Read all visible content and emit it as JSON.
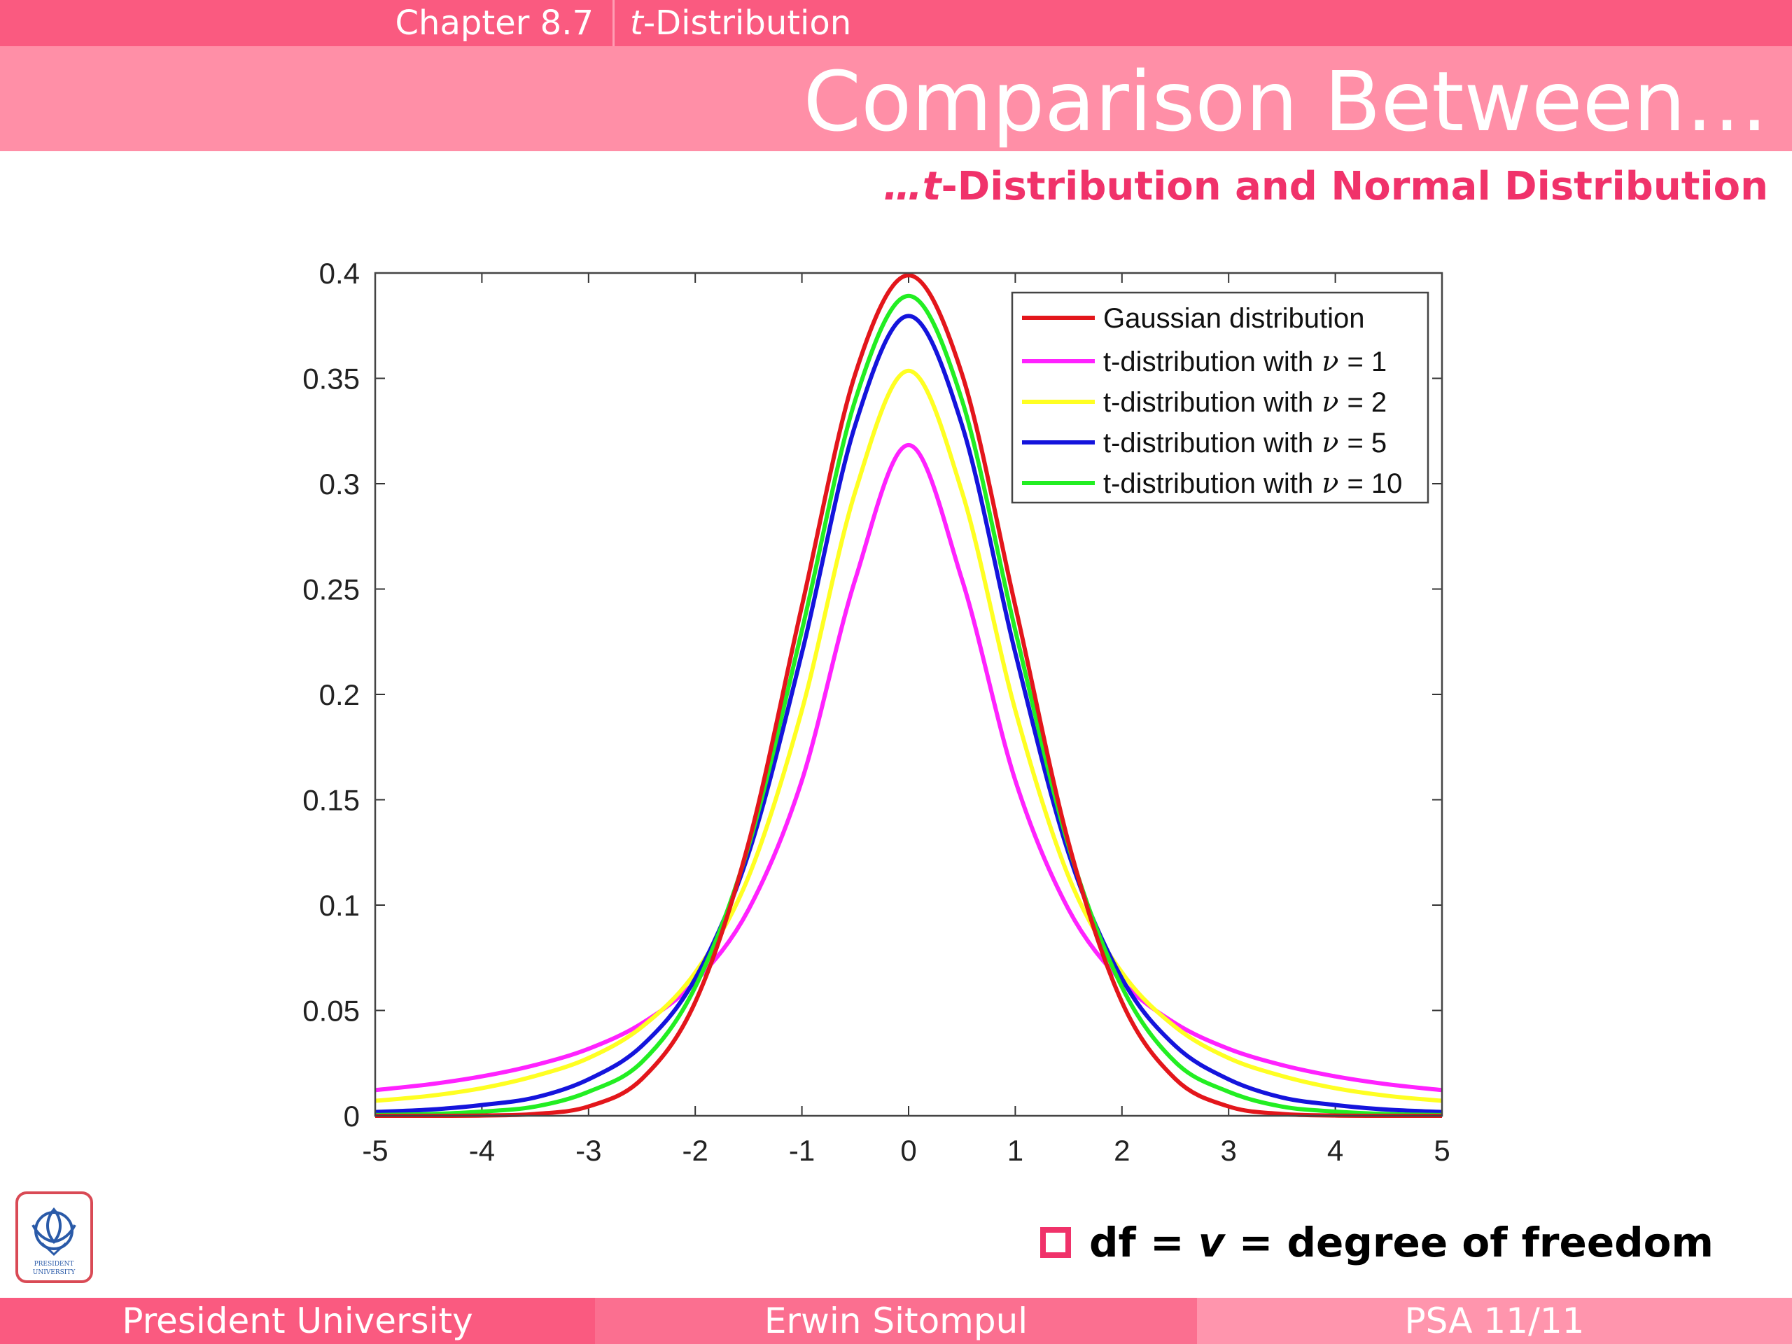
{
  "header": {
    "chapter": "Chapter 8.7",
    "section_italic": "t",
    "section_rest": "-Distribution",
    "title": "Comparison Between…",
    "subtitle_prefix": "…",
    "subtitle_italic": "t",
    "subtitle_rest": "-Distribution and Normal Distribution"
  },
  "note": {
    "prefix": "df = ",
    "italic": "v",
    "suffix": " = degree of freedom"
  },
  "footer": {
    "left": "President University",
    "center": "Erwin Sitompul",
    "right": "PSA 11/11"
  },
  "logo": {
    "text_line1": "PRESIDENT",
    "text_line2": "UNIVERSITY"
  },
  "colors": {
    "accent": "#fa5a80",
    "accent_light": "#ff8fa7",
    "subtitle": "#f0326a"
  },
  "chart_data": {
    "type": "line",
    "title": "",
    "xlabel": "",
    "ylabel": "",
    "xlim": [
      -5,
      5
    ],
    "ylim": [
      0,
      0.4
    ],
    "x_ticks": [
      "-5",
      "-4",
      "-3",
      "-2",
      "-1",
      "0",
      "1",
      "2",
      "3",
      "4",
      "5"
    ],
    "y_ticks": [
      "0",
      "0.05",
      "0.1",
      "0.15",
      "0.2",
      "0.25",
      "0.3",
      "0.35",
      "0.4"
    ],
    "grid": false,
    "legend_position": "top-right",
    "x": [
      -5,
      -4.5,
      -4,
      -3.5,
      -3,
      -2.5,
      -2,
      -1.5,
      -1,
      -0.5,
      0,
      0.5,
      1,
      1.5,
      2,
      2.5,
      3,
      3.5,
      4,
      4.5,
      5
    ],
    "series": [
      {
        "name": "Gaussian distribution",
        "legend_prefix": "Gaussian distribution",
        "legend_nu": "",
        "color": "#e3161b",
        "values": [
          1.5e-06,
          1.6e-05,
          0.000134,
          0.000873,
          0.00443,
          0.0175,
          0.054,
          0.1295,
          0.242,
          0.3521,
          0.3989,
          0.3521,
          0.242,
          0.1295,
          0.054,
          0.0175,
          0.00443,
          0.000873,
          0.000134,
          1.6e-05,
          1.5e-06
        ]
      },
      {
        "name": "t-distribution with ν = 1",
        "legend_prefix": "t-distribution with",
        "legend_nu": "= 1",
        "color": "#ff22ff",
        "values": [
          0.0122,
          0.0149,
          0.0187,
          0.0241,
          0.0318,
          0.0439,
          0.0637,
          0.0979,
          0.1592,
          0.2546,
          0.3183,
          0.2546,
          0.1592,
          0.0979,
          0.0637,
          0.0439,
          0.0318,
          0.0241,
          0.0187,
          0.0149,
          0.0122
        ]
      },
      {
        "name": "t-distribution with ν = 2",
        "legend_prefix": "t-distribution with",
        "legend_nu": "= 2",
        "color": "#ffff22",
        "values": [
          0.0071,
          0.0094,
          0.0131,
          0.0189,
          0.0274,
          0.0422,
          0.068,
          0.1135,
          0.1925,
          0.2962,
          0.3536,
          0.2962,
          0.1925,
          0.1135,
          0.068,
          0.0422,
          0.0274,
          0.0189,
          0.0131,
          0.0094,
          0.0071
        ]
      },
      {
        "name": "t-distribution with ν = 5",
        "legend_prefix": "t-distribution with",
        "legend_nu": "= 5",
        "color": "#1414dc",
        "values": [
          0.0018,
          0.0029,
          0.0051,
          0.0087,
          0.0173,
          0.0332,
          0.0651,
          0.1245,
          0.2197,
          0.3279,
          0.3796,
          0.3279,
          0.2197,
          0.1245,
          0.0651,
          0.0332,
          0.0173,
          0.0087,
          0.0051,
          0.0029,
          0.0018
        ]
      },
      {
        "name": "t-distribution with ν = 10",
        "legend_prefix": "t-distribution with",
        "legend_nu": "= 10",
        "color": "#22ee22",
        "values": [
          0.0004,
          0.0008,
          0.002,
          0.0044,
          0.0114,
          0.0255,
          0.0611,
          0.128,
          0.2304,
          0.3397,
          0.3891,
          0.3397,
          0.2304,
          0.128,
          0.0611,
          0.0255,
          0.0114,
          0.0044,
          0.002,
          0.0008,
          0.0004
        ]
      }
    ]
  }
}
